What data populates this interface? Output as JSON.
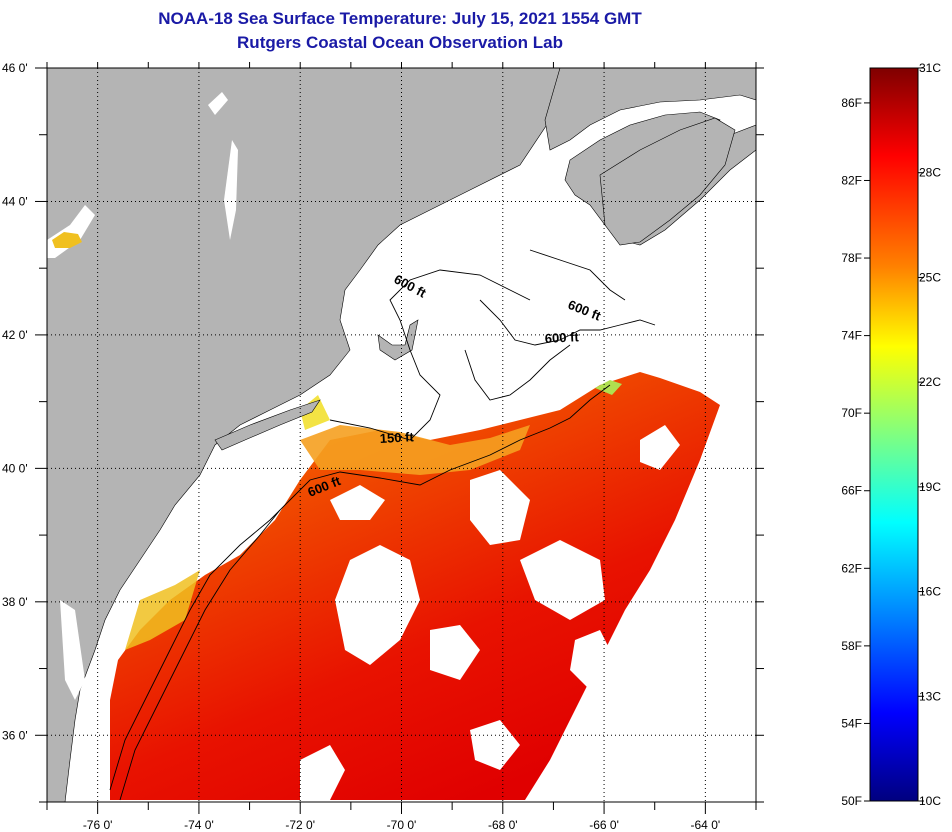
{
  "title": "NOAA-18 Sea Surface Temperature:  July 15, 2021 1554 GMT",
  "subtitle": "Rutgers Coastal Ocean Observation Lab",
  "map": {
    "lat_labels": [
      "46 0'",
      "44 0'",
      "42 0'",
      "40 0'",
      "38 0'",
      "36 0'"
    ],
    "lat_values": [
      46,
      44,
      42,
      40,
      38,
      36
    ],
    "lon_labels": [
      "-76 0'",
      "-74 0'",
      "-72 0'",
      "-70 0'",
      "-68 0'",
      "-66 0'",
      "-64 0'"
    ],
    "lon_values": [
      -76,
      -74,
      -72,
      -70,
      -68,
      -66,
      -64
    ],
    "lat_range": [
      35.0,
      46.0
    ],
    "lon_range": [
      -77.0,
      -63.0
    ],
    "grid": "dotted",
    "land_color": "#b4b4b4",
    "cloud_color": "#ffffff",
    "contour_labels": [
      {
        "text": "600 ft",
        "id": "gulf-of-maine"
      },
      {
        "text": "600 ft",
        "id": "georges-east"
      },
      {
        "text": "600 ft",
        "id": "georges-north"
      },
      {
        "text": "150 ft",
        "id": "nantucket-shoals"
      },
      {
        "text": "600 ft",
        "id": "shelf-break"
      }
    ]
  },
  "colorbar": {
    "fahrenheit_labels": [
      "86F",
      "82F",
      "78F",
      "74F",
      "70F",
      "66F",
      "62F",
      "58F",
      "54F",
      "50F"
    ],
    "celsius_labels": [
      "31C",
      "28C",
      "25C",
      "22C",
      "19C",
      "16C",
      "13C",
      "10C"
    ],
    "range_f": [
      50,
      87.8
    ],
    "range_c": [
      10,
      31
    ],
    "colormap": "jet",
    "colors_top_to_bottom": [
      "#7f0000",
      "#ff0000",
      "#ff8000",
      "#ffff00",
      "#80ff80",
      "#00ffff",
      "#0080ff",
      "#0000ff",
      "#00007f"
    ]
  }
}
